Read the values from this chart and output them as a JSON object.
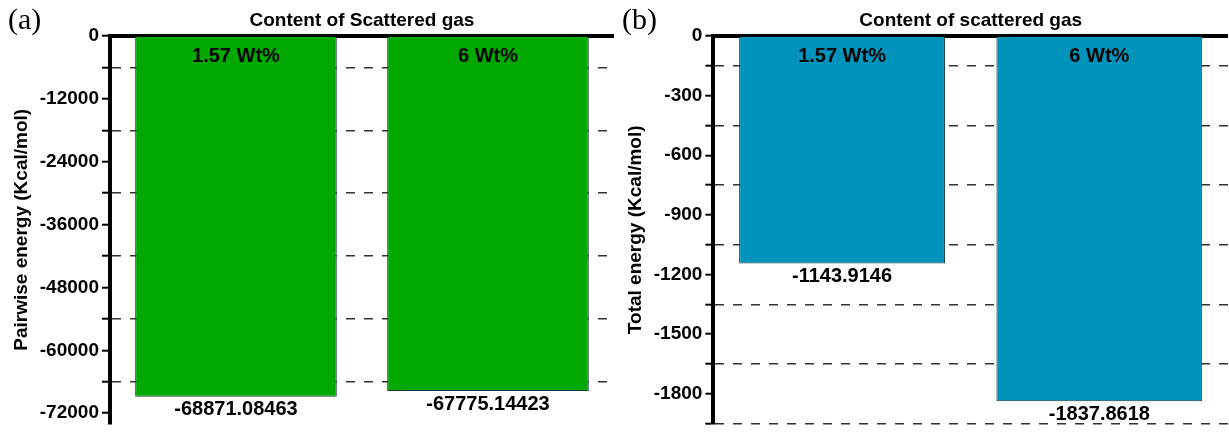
{
  "chart_data": [
    {
      "type": "bar",
      "xlabel": "Content of Scattered gas",
      "ylabel": "Pairwise energy (Kcal/mol)",
      "categories": [
        "1.57 Wt%",
        "6 Wt%"
      ],
      "values": [
        -68871.08463,
        -67775.14423
      ],
      "color": "#00a800",
      "ylim": [
        -74000,
        0
      ],
      "yticks": [
        0,
        {
          "value": -6000,
          "label": null
        },
        -12000,
        {
          "value": -18000,
          "label": null
        },
        -24000,
        {
          "value": -30000,
          "label": null
        },
        -36000,
        {
          "value": -42000,
          "label": null
        },
        -48000,
        {
          "value": -54000,
          "label": null
        },
        -60000,
        {
          "value": -66000,
          "label": null
        },
        -72000
      ],
      "grid": "y",
      "data_labels": true,
      "annotations": [
        "(a)"
      ]
    },
    {
      "type": "bar",
      "xlabel": "Content of scattered gas",
      "ylabel": "Total energy (Kcal/mol)",
      "categories": [
        "1.57 Wt%",
        "6 Wt%"
      ],
      "values": [
        -1143.9146,
        -1837.8618
      ],
      "color": "#0094bc",
      "ylim": [
        -1950,
        0
      ],
      "yticks": [
        0,
        {
          "value": -150,
          "label": null
        },
        -300,
        {
          "value": -450,
          "label": null
        },
        -600,
        {
          "value": -750,
          "label": null
        },
        -900,
        {
          "value": -1050,
          "label": null
        },
        -1200,
        {
          "value": -1350,
          "label": null
        },
        -1500,
        {
          "value": -1650,
          "label": null
        },
        -1800,
        {
          "value": -1950,
          "label": null
        }
      ],
      "grid": "y",
      "data_labels": true,
      "annotations": [
        "(b)"
      ]
    }
  ]
}
